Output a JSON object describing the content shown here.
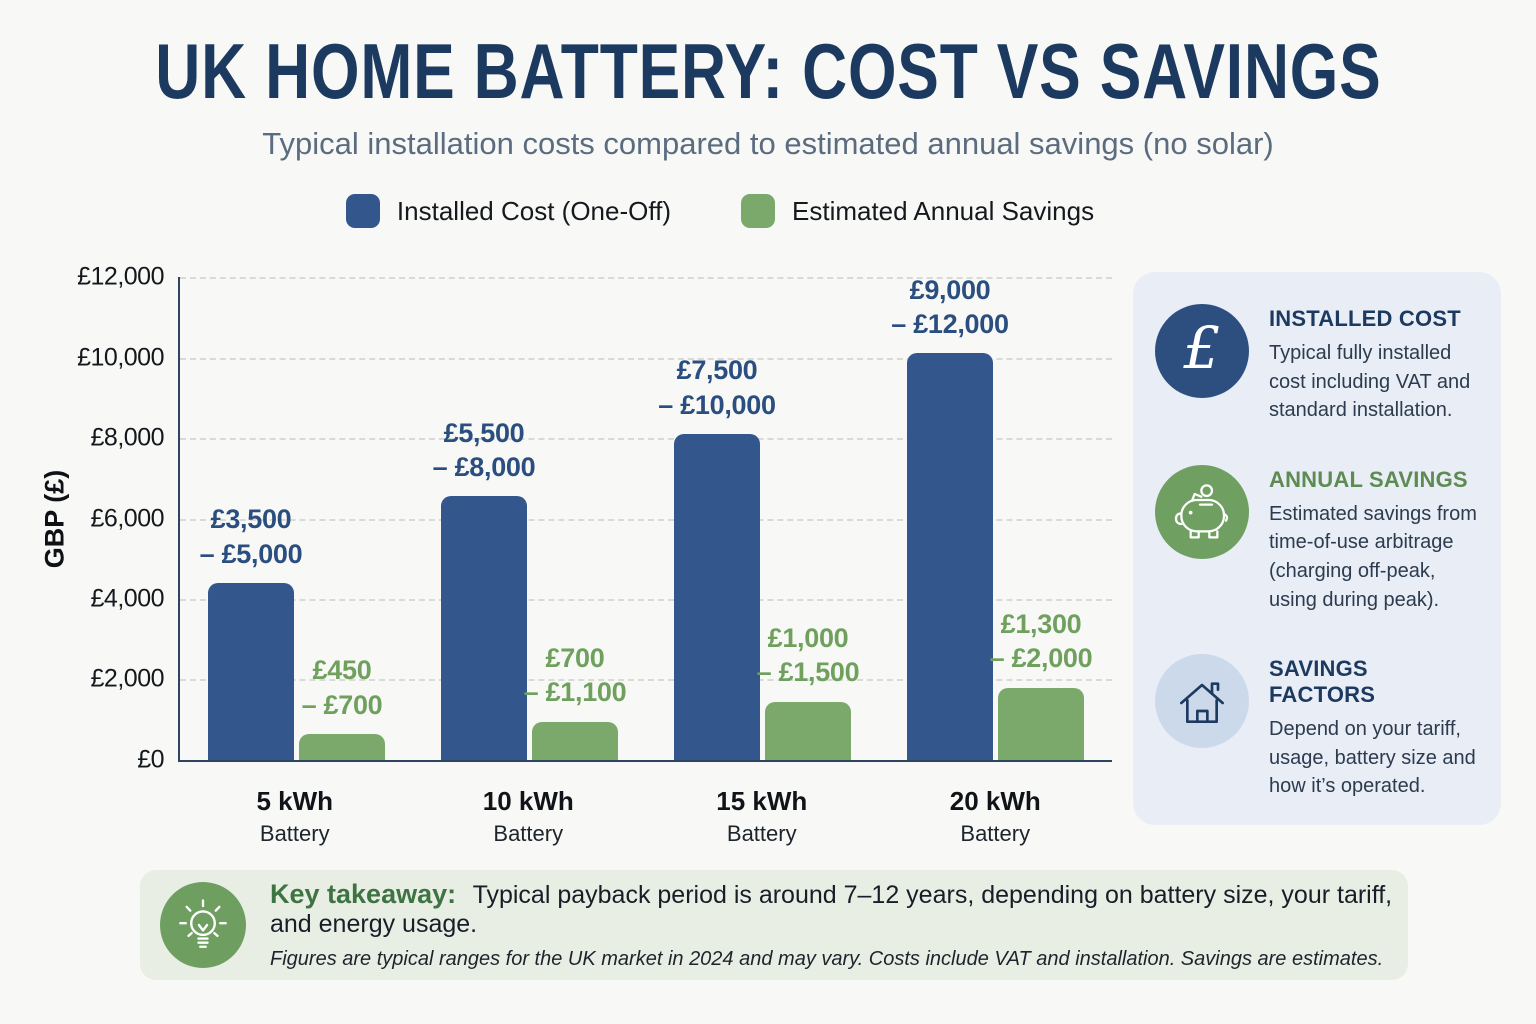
{
  "title": "UK HOME BATTERY: COST VS SAVINGS",
  "subtitle": "Typical installation costs compared to estimated annual savings (no solar)",
  "colors": {
    "cost_bar": "#33568C",
    "savings_bar": "#7BA96B",
    "cost_label": "#2B4E80",
    "savings_label": "#6FA05E",
    "title_navy": "#1C3A5F",
    "sidebar_bg": "#E8EDF6",
    "takeaway_bg": "#E9EEE5"
  },
  "chart_data": {
    "type": "bar",
    "title": "UK Home Battery: Cost vs Savings",
    "ylabel": "GBP (£)",
    "ylim": [
      0,
      12000
    ],
    "ytick_labels": [
      "£0",
      "£2,000",
      "£4,000",
      "£6,000",
      "£8,000",
      "£10,000",
      "£12,000"
    ],
    "grid": "horizontal-dashed",
    "legend_position": "top",
    "categories": [
      "5 kWh",
      "10 kWh",
      "15 kWh",
      "20 kWh"
    ],
    "category_sub_label": "Battery",
    "series": [
      {
        "name": "Installed Cost (One-Off)",
        "color": "#33568C",
        "range_min": [
          3500,
          5500,
          7500,
          9000
        ],
        "range_max": [
          5000,
          8000,
          10000,
          12000
        ],
        "bar_display_values": [
          4400,
          6550,
          8100,
          10100
        ],
        "labels": [
          [
            "£3,500",
            "– £5,000"
          ],
          [
            "£5,500",
            "– £8,000"
          ],
          [
            "£7,500",
            "– £10,000"
          ],
          [
            "£9,000",
            "– £12,000"
          ]
        ]
      },
      {
        "name": "Estimated Annual Savings",
        "color": "#7BA96B",
        "range_min": [
          450,
          700,
          1000,
          1300
        ],
        "range_max": [
          700,
          1100,
          1500,
          2000
        ],
        "bar_display_values": [
          650,
          950,
          1450,
          1800
        ],
        "labels": [
          [
            "£450",
            "– £700"
          ],
          [
            "£700",
            "– £1,100"
          ],
          [
            "£1,000",
            "– £1,500"
          ],
          [
            "£1,300",
            "– £2,000"
          ]
        ]
      }
    ]
  },
  "sidebar": {
    "items": [
      {
        "glyph": "£",
        "icon_bg": "#2D4F80",
        "heading": "INSTALLED COST",
        "heading_color": "#1C3A5F",
        "text": "Typical fully installed cost including VAT and standard installation."
      },
      {
        "icon_bg": "#6FA061",
        "heading": "ANNUAL SAVINGS",
        "heading_color": "#5E8B51",
        "text": "Estimated savings from time-of-use arbitrage (charging off-peak, using during peak)."
      },
      {
        "icon_bg": "#CCD9EA",
        "heading": "SAVINGS FACTORS",
        "heading_color": "#1C3A5F",
        "text": "Depend on your tariff, usage, battery size and how it’s operated."
      }
    ]
  },
  "takeaway": {
    "icon_bg": "#6F9F60",
    "heading": "Key takeaway:",
    "text": "Typical payback period is around 7–12 years, depending on battery size, your tariff, and energy usage.",
    "footnote": "Figures are typical ranges for the UK market in 2024 and may vary. Costs include VAT and installation. Savings are estimates."
  }
}
